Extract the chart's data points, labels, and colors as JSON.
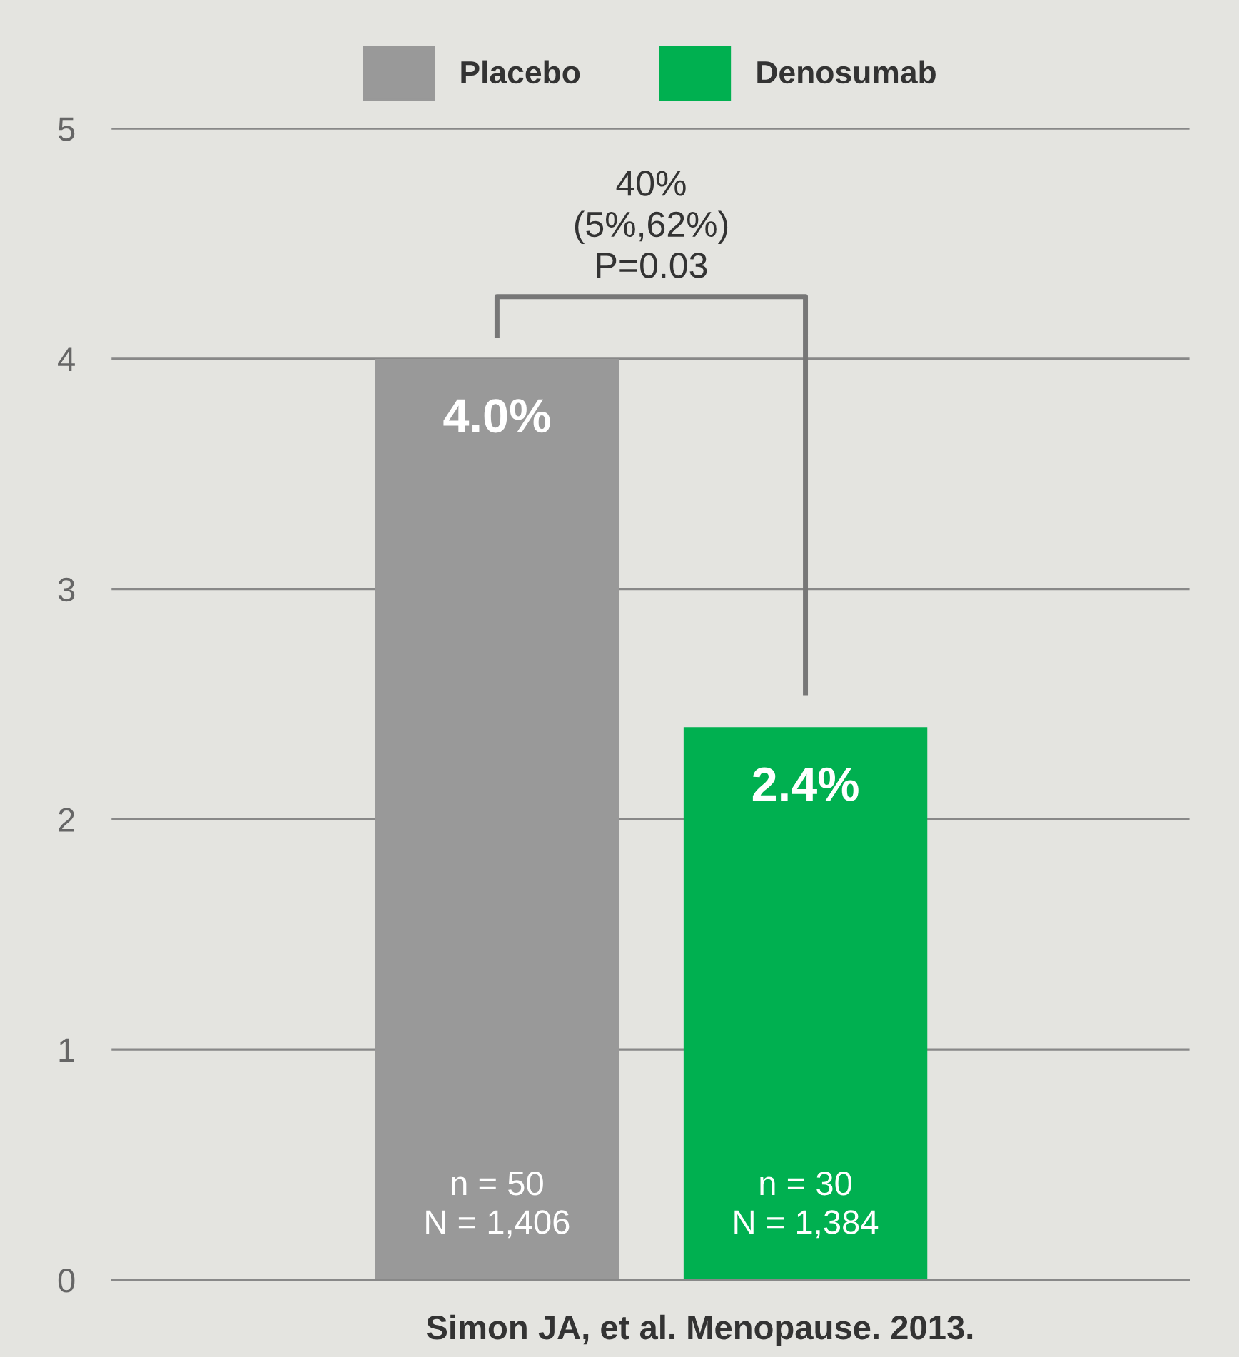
{
  "chart_data": {
    "type": "bar",
    "categories": [
      null,
      null
    ],
    "series": [
      {
        "name": "Placebo",
        "color": "#999999",
        "values": [
          4.0,
          null
        ],
        "value_labels": [
          "4.0%",
          null
        ]
      },
      {
        "name": "Denosumab",
        "color": "#00b050",
        "values": [
          null,
          2.4
        ],
        "value_labels": [
          null,
          "2.4%"
        ]
      }
    ],
    "ylim": [
      0,
      5
    ],
    "yticks": [
      0,
      1,
      2,
      3,
      4,
      5
    ],
    "grid": "y",
    "legend": "top",
    "annotations": [
      "40%\n(5%,62%)\nP=0.03",
      "n = 50\nN = 1,406",
      "n = 30\nN = 1,384",
      "Simon JA, et al. Menopause. 2013."
    ]
  }
}
